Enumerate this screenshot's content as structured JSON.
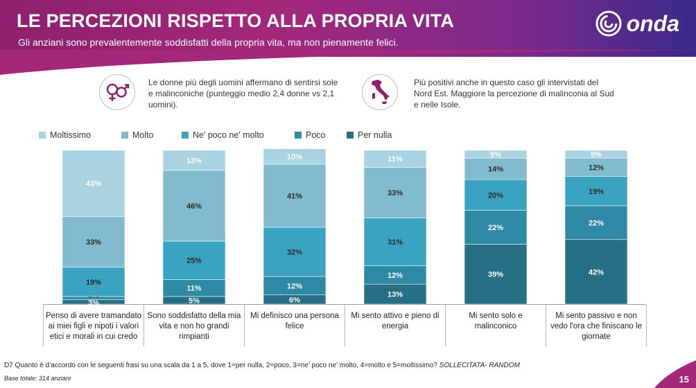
{
  "header": {
    "title": "LE PERCEZIONI RISPETTO ALLA PROPRIA VITA",
    "subtitle": "Gli anziani sono prevalentemente soddisfatti della propria vita, ma non pienamente felici.",
    "logo_text": "onda"
  },
  "info": {
    "gender": {
      "icon": "gender-symbols-icon",
      "text": "Le donne più degli uomini affermano di sentirsi sole e malinconiche (punteggio medio 2,4 donne vs 2,1 uomini)."
    },
    "region": {
      "icon": "italy-map-icon",
      "text": "Più positivi anche in questo caso gli intervistati del Nord Est. Maggiore la percezione di malinconia al Sud e nelle Isole."
    }
  },
  "colors": {
    "moltissimo": "#a9d3e0",
    "molto": "#82bacf",
    "ne_poco_ne_molto": "#3ba3c2",
    "poco": "#2e8aa4",
    "per_nulla": "#276f84",
    "brand_magenta": "#a3287c"
  },
  "chart_data": {
    "type": "bar",
    "stacked": true,
    "orientation": "vertical",
    "legend_position": "top-left",
    "categories": [
      "Penso di avere tramandato ai miei figli e nipoti i valori etici e morali in cui credo",
      "Sono soddisfatto della mia vita e non ho grandi rimpianti",
      "Mi definisco una persona felice",
      "Mi sento attivo e pieno di energia",
      "Mi sento solo e malinconico",
      "Mi sento passivo e non vedo l'ora che finiscano le giornate"
    ],
    "category_lines": [
      [
        "Penso di avere tramandato",
        "ai miei figli e nipoti i valori",
        "etici e morali in cui credo"
      ],
      [
        "Sono soddisfatto della mia",
        "vita e non ho grandi",
        "rimpianti"
      ],
      [
        "Mi definisco una persona",
        "felice"
      ],
      [
        "Mi sento attivo e pieno di",
        "energia"
      ],
      [
        "Mi sento solo e malinconico"
      ],
      [
        "Mi sento passivo e non",
        "vedo l'ora che finiscano le",
        "giornate"
      ]
    ],
    "series": [
      {
        "name": "Per nulla",
        "key": "per_nulla",
        "values": [
          3,
          5,
          6,
          13,
          39,
          42
        ],
        "labels": [
          "3%",
          "5%",
          "6%",
          "13%",
          "39%",
          "42%"
        ]
      },
      {
        "name": "Poco",
        "key": "poco",
        "values": [
          2,
          11,
          12,
          12,
          22,
          22
        ],
        "labels": [
          "2%",
          "11%",
          "12%",
          "12%",
          "22%",
          "22%"
        ]
      },
      {
        "name": "Ne' poco ne' molto",
        "key": "ne_poco_ne_molto",
        "values": [
          19,
          25,
          32,
          31,
          20,
          19
        ],
        "labels": [
          "19%",
          "25%",
          "32%",
          "31%",
          "20%",
          "19%"
        ]
      },
      {
        "name": "Molto",
        "key": "molto",
        "values": [
          33,
          46,
          41,
          33,
          14,
          12
        ],
        "labels": [
          "33%",
          "46%",
          "41%",
          "33%",
          "14%",
          "12%"
        ]
      },
      {
        "name": "Moltissimo",
        "key": "moltissimo",
        "values": [
          43,
          13,
          10,
          11,
          5,
          5
        ],
        "labels": [
          "43%",
          "13%",
          "10%",
          "11%",
          "5%",
          "5%"
        ]
      }
    ],
    "legend_order": [
      "Moltissimo",
      "Molto",
      "Ne' poco ne' molto",
      "Poco",
      "Per nulla"
    ],
    "ylim": [
      0,
      100
    ]
  },
  "footer": {
    "question": "D7 Quanto è d’accordo con le seguenti frasi su una scala da 1 a 5, dove 1=per nulla, 2=poco, 3=ne’ poco ne’ molto, 4=molto e 5=moltissimo?",
    "question_tag": "SOLLECITATA- RANDOM",
    "base": "Base totale: 314 anziani",
    "page": "15"
  }
}
